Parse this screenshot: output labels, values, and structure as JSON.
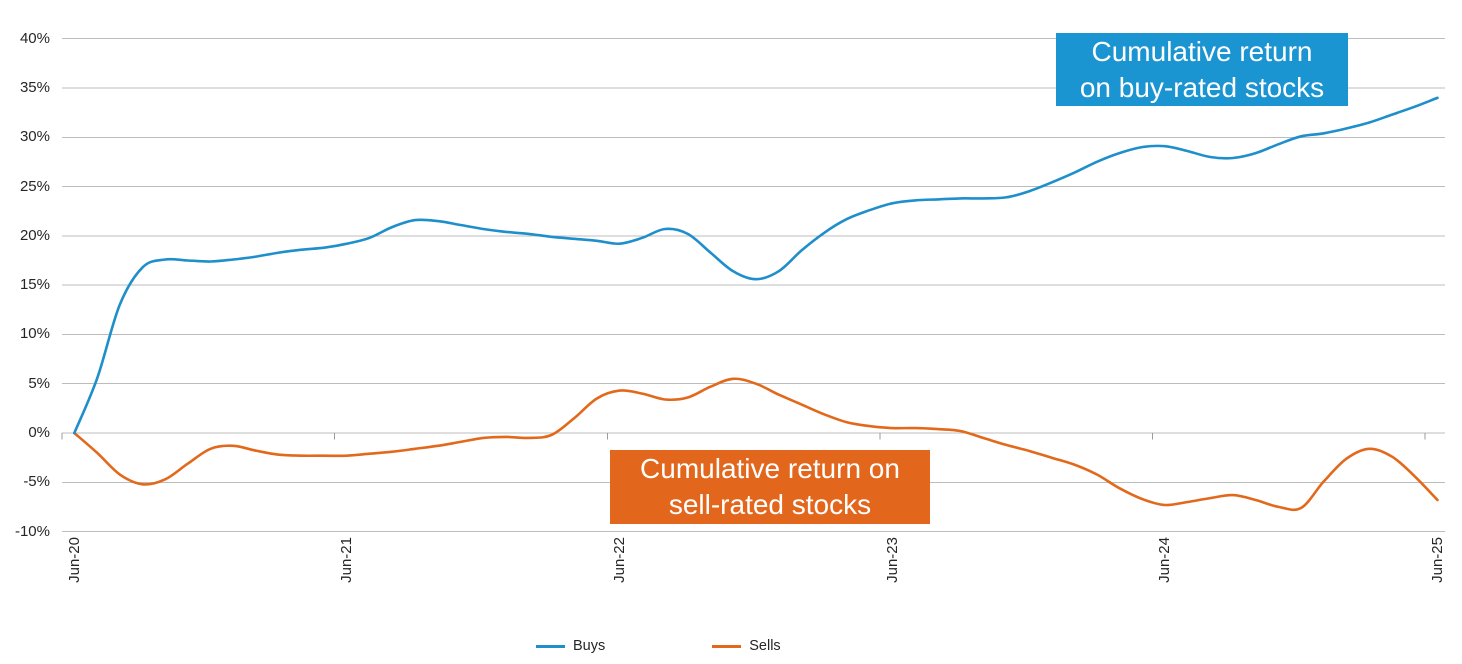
{
  "chart_data": {
    "type": "line",
    "title": "",
    "x_axis": {
      "tick_labels": [
        "Jun-20",
        "Jun-21",
        "Jun-22",
        "Jun-23",
        "Jun-24",
        "Jun-25"
      ],
      "frequency": "monthly",
      "points_per_series": 61
    },
    "y_axis": {
      "tick_labels": [
        "40%",
        "35%",
        "30%",
        "25%",
        "20%",
        "15%",
        "10%",
        "5%",
        "0%",
        "-5%",
        "-10%"
      ],
      "min": -10,
      "max": 40,
      "step": 5,
      "unit": "%"
    },
    "grid": "horizontal",
    "legend_position": "bottom",
    "series": [
      {
        "name": "Buys",
        "color": "#1E8FCB",
        "values": [
          0.0,
          5.5,
          13.0,
          16.8,
          17.6,
          17.5,
          17.4,
          17.6,
          17.9,
          18.3,
          18.6,
          18.8,
          19.2,
          19.8,
          20.9,
          21.6,
          21.5,
          21.1,
          20.7,
          20.4,
          20.2,
          19.9,
          19.7,
          19.5,
          19.2,
          19.8,
          20.7,
          20.2,
          18.3,
          16.4,
          15.6,
          16.4,
          18.5,
          20.3,
          21.7,
          22.6,
          23.3,
          23.6,
          23.7,
          23.8,
          23.8,
          23.9,
          24.5,
          25.4,
          26.4,
          27.5,
          28.4,
          29.0,
          29.1,
          28.6,
          28.0,
          27.9,
          28.4,
          29.3,
          30.1,
          30.4,
          30.9,
          31.5,
          32.3,
          33.1,
          34.0
        ]
      },
      {
        "name": "Sells",
        "color": "#E2691C",
        "values": [
          0.0,
          -2.0,
          -4.2,
          -5.2,
          -4.7,
          -3.1,
          -1.6,
          -1.3,
          -1.8,
          -2.2,
          -2.3,
          -2.3,
          -2.3,
          -2.1,
          -1.9,
          -1.6,
          -1.3,
          -0.9,
          -0.5,
          -0.4,
          -0.5,
          -0.2,
          1.5,
          3.5,
          4.3,
          4.0,
          3.4,
          3.6,
          4.7,
          5.5,
          5.0,
          3.9,
          2.9,
          1.9,
          1.1,
          0.7,
          0.5,
          0.5,
          0.4,
          0.2,
          -0.5,
          -1.2,
          -1.8,
          -2.5,
          -3.2,
          -4.2,
          -5.6,
          -6.7,
          -7.3,
          -7.0,
          -6.6,
          -6.3,
          -6.8,
          -7.5,
          -7.6,
          -4.9,
          -2.6,
          -1.6,
          -2.4,
          -4.4,
          -6.8
        ]
      }
    ],
    "annotations": [
      {
        "line1": "Cumulative return",
        "line2": "on buy-rated stocks",
        "bg": "#1B95D1",
        "text_color": "#FFFFFF"
      },
      {
        "line1": "Cumulative return on",
        "line2": "sell-rated stocks",
        "bg": "#E2671D",
        "text_color": "#FFFFFF"
      }
    ]
  }
}
